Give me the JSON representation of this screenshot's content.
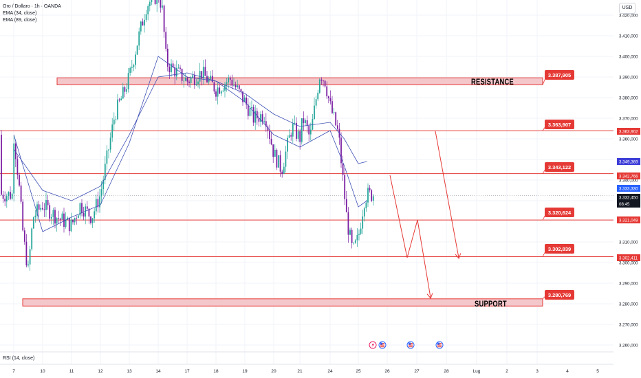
{
  "legend": {
    "symbol": "Oro / Dollaro · 1h · OANDA",
    "ema1": "EMA (34, close)",
    "ema2": "EMA (89, close)"
  },
  "currency_button": "USD",
  "rsi_label": "RSI (14, close)",
  "colors": {
    "up": "#26a69a",
    "down": "#7b1fa2",
    "ema": "#3f51b5",
    "zone_fill": "#f4c7cb",
    "zone_stroke": "#e53935",
    "level": "#e53935",
    "arrow": "#e53935",
    "price_tag_dark": "#131722",
    "price_tag_blue": "#2962ff",
    "price_tag_indigo": "#3d3dd8"
  },
  "chart_data": {
    "type": "candlestick",
    "title": "Oro / Dollaro · 1h · OANDA",
    "ylim": [
      3255,
      3432
    ],
    "y_ticks": [
      "3.420,000",
      "3.410,000",
      "3.400,000",
      "3.390,000",
      "3.380,000",
      "3.370,000",
      "3.360,000",
      "3.350,000",
      "3.340,000",
      "3.330,000",
      "3.310,000",
      "3.300,000",
      "3.290,000",
      "3.280,000",
      "3.270,000",
      "3.260,000"
    ],
    "x_ticks": [
      "7",
      "10",
      "11",
      "12",
      "13",
      "14",
      "17",
      "18",
      "19",
      "20",
      "21",
      "24",
      "25",
      "26",
      "27",
      "28",
      "Lug",
      "2",
      "3",
      "4",
      "5"
    ],
    "zones": [
      {
        "label": "RESISTANCE",
        "low": 3386.2,
        "high": 3389.6,
        "tag": "3.387,905"
      },
      {
        "label": "SUPPORT",
        "low": 3278.9,
        "high": 3282.4,
        "tag": "3.280,769"
      }
    ],
    "levels": [
      {
        "value": 3363.907,
        "tag": "3.363,907"
      },
      {
        "value": 3343.122,
        "tag": "3.343,122"
      },
      {
        "value": 3320.624,
        "tag": "3.320,624"
      },
      {
        "value": 3302.839,
        "tag": "3.302,839"
      }
    ],
    "axis_tags": [
      {
        "value": 3363.902,
        "text": "3.363,902",
        "color": "#e53935"
      },
      {
        "value": 3349.369,
        "text": "3.349,369",
        "color": "#3d3dd8"
      },
      {
        "value": 3342.766,
        "text": "3.342,766",
        "color": "#e53935"
      },
      {
        "value": 3333.33,
        "text": "3.333,330",
        "color": "#2962ff"
      },
      {
        "value": 3332.45,
        "text": "3.332,450",
        "sub": "08:45",
        "color": "#131722"
      },
      {
        "value": 3321.049,
        "text": "3.321,049",
        "color": "#e53935"
      },
      {
        "value": 3302.411,
        "text": "3.302,411",
        "color": "#e53935"
      }
    ],
    "ema_34": [
      [
        7,
        3362
      ],
      [
        10,
        3315
      ],
      [
        11,
        3322
      ],
      [
        12,
        3328
      ],
      [
        13,
        3358
      ],
      [
        14,
        3400
      ],
      [
        17,
        3390
      ],
      [
        18,
        3388
      ],
      [
        19,
        3378
      ],
      [
        20,
        3362
      ],
      [
        21,
        3356
      ],
      [
        24,
        3364
      ],
      [
        24.5,
        3347
      ],
      [
        25,
        3327
      ],
      [
        25.3,
        3330
      ]
    ],
    "ema_89": [
      [
        7,
        3355
      ],
      [
        10,
        3335
      ],
      [
        11,
        3330
      ],
      [
        12,
        3337
      ],
      [
        13,
        3362
      ],
      [
        14,
        3390
      ],
      [
        17,
        3392
      ],
      [
        18,
        3388
      ],
      [
        19,
        3382
      ],
      [
        20,
        3372
      ],
      [
        21,
        3366
      ],
      [
        24,
        3368
      ],
      [
        24.5,
        3360
      ],
      [
        25,
        3348
      ],
      [
        25.3,
        3349
      ]
    ],
    "projection_paths": [
      [
        [
          "25.8",
          3343
        ],
        [
          "26.5",
          3302
        ],
        [
          "27",
          3320
        ],
        [
          "27.5",
          3282
        ]
      ],
      [
        [
          "27",
          3363
        ],
        [
          "28",
          3302
        ]
      ]
    ]
  }
}
